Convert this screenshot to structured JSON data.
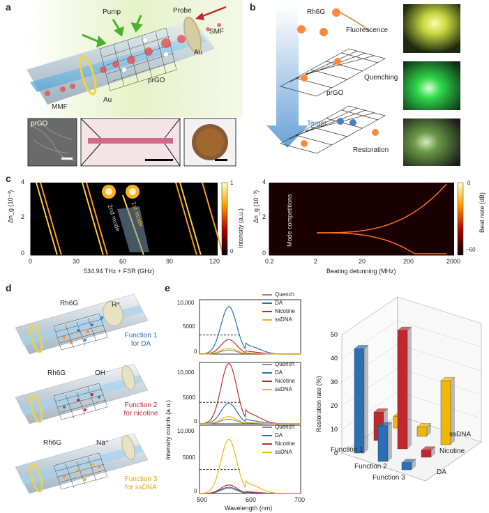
{
  "panels": {
    "a": "a",
    "b": "b",
    "c": "c",
    "d": "d",
    "e": "e"
  },
  "a": {
    "pump": "Pump",
    "probe": "Probe",
    "smf": "SMF",
    "au_top": "Au",
    "au_bottom": "Au",
    "prgo": "prGO",
    "mmf": "MMF",
    "inset_prgo": "prGO"
  },
  "b": {
    "rh6g": "Rh6G",
    "fluorescence": "Fluorescence",
    "prgo": "prGO",
    "quenching": "Quenching",
    "target": "Target",
    "restoration": "Restoration"
  },
  "c": {
    "left": {
      "xlabel": "534.94 THz + FSR (GHz)",
      "ylabel": "Δn_g (10⁻³)",
      "xticks": [
        "0",
        "30",
        "60",
        "90",
        "120"
      ],
      "yticks": [
        "4",
        "2",
        "0"
      ],
      "mode1": "1st mode",
      "mode2": "2nd mode",
      "cb_label": "Intensity (a.u.)",
      "cb_ticks": [
        "1",
        "0"
      ]
    },
    "right": {
      "xlabel": "Beating detunning (MHz)",
      "ylabel": "Δn_g (10⁻³)",
      "xticks": [
        "0.2",
        "2",
        "20",
        "200",
        "2000"
      ],
      "yticks": [
        "4",
        "2",
        "0"
      ],
      "annot": "Mode competitions",
      "cb_label": "Beat note (dB)",
      "cb_ticks": [
        "0",
        "−60"
      ]
    }
  },
  "d": {
    "f1": {
      "rh6g": "Rh6G",
      "ion": "H⁺",
      "func": "Function 1",
      "target": "for DA"
    },
    "f2": {
      "rh6g": "Rh6G",
      "ion": "OH⁻",
      "func": "Function 2",
      "target": "for nicotine"
    },
    "f3": {
      "rh6g": "Rh6G",
      "ion": "Na⁺",
      "func": "Function 3",
      "target": "for ssDNA"
    }
  },
  "e": {
    "ylabel": "Intensity counts (a.u.)",
    "xlabel": "Wavelength (nm)",
    "xticks": [
      "500",
      "600",
      "700"
    ],
    "yticks": [
      "10,000",
      "5000",
      "0"
    ],
    "legend": [
      "Quench",
      "DA",
      "Nicotine",
      "ssDNA"
    ],
    "bar3d": {
      "ylabel": "Restoration rate (%)",
      "zticks": [
        "50",
        "40",
        "30",
        "20",
        "10",
        "0"
      ],
      "rows": [
        "Function 1",
        "Function 2",
        "Function 3"
      ],
      "cols": [
        "DA",
        "Nicotine",
        "ssDNA"
      ]
    }
  },
  "colors": {
    "quench": "#888888",
    "da": "#2b6fb6",
    "nicotine": "#c0282d",
    "ssdna": "#f2b705"
  },
  "chart_data": [
    {
      "type": "line",
      "title": "",
      "xlabel": "Wavelength (nm)",
      "ylabel": "Intensity counts (a.u.)",
      "xlim": [
        500,
        700
      ],
      "ylim": [
        0,
        12000
      ],
      "series": [
        {
          "name": "Quench",
          "x": [
            500,
            550,
            560,
            580,
            620,
            700
          ],
          "values": [
            0,
            700,
            900,
            500,
            100,
            0
          ]
        },
        {
          "name": "DA",
          "x": [
            500,
            540,
            560,
            580,
            620,
            700
          ],
          "values": [
            0,
            5000,
            10500,
            7000,
            500,
            0
          ]
        },
        {
          "name": "Nicotine",
          "x": [
            500,
            540,
            560,
            580,
            620,
            700
          ],
          "values": [
            0,
            1500,
            3200,
            2200,
            300,
            0
          ]
        },
        {
          "name": "ssDNA",
          "x": [
            500,
            540,
            560,
            580,
            620,
            700
          ],
          "values": [
            0,
            600,
            1300,
            800,
            150,
            0
          ]
        }
      ]
    },
    {
      "type": "line",
      "title": "",
      "xlabel": "Wavelength (nm)",
      "ylabel": "Intensity counts (a.u.)",
      "xlim": [
        500,
        700
      ],
      "ylim": [
        0,
        12000
      ],
      "series": [
        {
          "name": "Quench",
          "x": [
            500,
            550,
            560,
            580,
            620,
            700
          ],
          "values": [
            0,
            700,
            900,
            500,
            100,
            0
          ]
        },
        {
          "name": "DA",
          "x": [
            500,
            540,
            560,
            580,
            620,
            700
          ],
          "values": [
            0,
            1800,
            4000,
            2800,
            300,
            0
          ]
        },
        {
          "name": "Nicotine",
          "x": [
            500,
            540,
            560,
            580,
            620,
            700
          ],
          "values": [
            0,
            5500,
            11800,
            8000,
            600,
            0
          ]
        },
        {
          "name": "ssDNA",
          "x": [
            500,
            540,
            560,
            580,
            620,
            700
          ],
          "values": [
            0,
            600,
            1400,
            900,
            150,
            0
          ]
        }
      ]
    },
    {
      "type": "line",
      "title": "",
      "xlabel": "Wavelength (nm)",
      "ylabel": "Intensity counts (a.u.)",
      "xlim": [
        500,
        700
      ],
      "ylim": [
        0,
        12000
      ],
      "series": [
        {
          "name": "Quench",
          "x": [
            500,
            550,
            560,
            580,
            620,
            700
          ],
          "values": [
            0,
            700,
            900,
            500,
            100,
            0
          ]
        },
        {
          "name": "DA",
          "x": [
            500,
            540,
            560,
            580,
            620,
            700
          ],
          "values": [
            0,
            500,
            1100,
            700,
            100,
            0
          ]
        },
        {
          "name": "Nicotine",
          "x": [
            500,
            540,
            560,
            580,
            620,
            700
          ],
          "values": [
            0,
            700,
            1500,
            900,
            150,
            0
          ]
        },
        {
          "name": "ssDNA",
          "x": [
            500,
            540,
            560,
            580,
            620,
            700
          ],
          "values": [
            0,
            4500,
            9500,
            6000,
            500,
            0
          ]
        }
      ]
    },
    {
      "type": "bar",
      "title": "",
      "ylabel": "Restoration rate (%)",
      "ylim": [
        0,
        50
      ],
      "categories": [
        "Function 1",
        "Function 2",
        "Function 3"
      ],
      "series": [
        {
          "name": "DA",
          "values": [
            44,
            15,
            3
          ]
        },
        {
          "name": "Nicotine",
          "values": [
            12,
            50,
            3
          ]
        },
        {
          "name": "ssDNA",
          "values": [
            5,
            4,
            27
          ]
        }
      ]
    }
  ]
}
